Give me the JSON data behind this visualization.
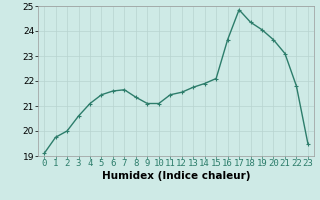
{
  "x": [
    0,
    1,
    2,
    3,
    4,
    5,
    6,
    7,
    8,
    9,
    10,
    11,
    12,
    13,
    14,
    15,
    16,
    17,
    18,
    19,
    20,
    21,
    22,
    23
  ],
  "y": [
    19.1,
    19.75,
    20.0,
    20.6,
    21.1,
    21.45,
    21.6,
    21.65,
    21.35,
    21.1,
    21.1,
    21.45,
    21.55,
    21.75,
    21.9,
    22.1,
    23.65,
    24.85,
    24.35,
    24.05,
    23.65,
    23.1,
    21.8,
    19.5
  ],
  "line_color": "#2d7d6b",
  "marker": "+",
  "marker_size": 3.5,
  "marker_linewidth": 0.8,
  "bg_color": "#ceeae6",
  "grid_color": "#b8d4d0",
  "xlabel": "Humidex (Indice chaleur)",
  "xlim": [
    -0.5,
    23.5
  ],
  "ylim": [
    19,
    25
  ],
  "xtick_labels": [
    "0",
    "1",
    "2",
    "3",
    "4",
    "5",
    "6",
    "7",
    "8",
    "9",
    "10",
    "11",
    "12",
    "13",
    "14",
    "15",
    "16",
    "17",
    "18",
    "19",
    "20",
    "21",
    "22",
    "23"
  ],
  "ytick_values": [
    19,
    20,
    21,
    22,
    23,
    24,
    25
  ],
  "xlabel_fontsize": 7.5,
  "tick_fontsize": 6.5,
  "line_width": 1.0
}
